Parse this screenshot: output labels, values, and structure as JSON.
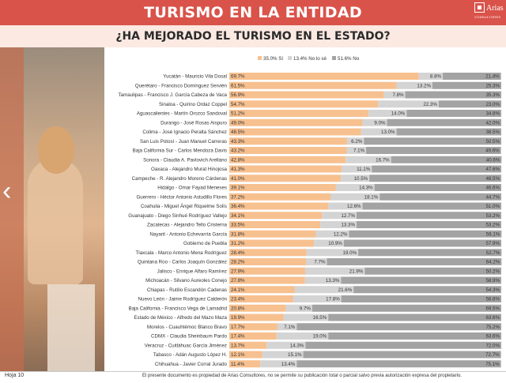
{
  "header": {
    "title": "TURISMO EN LA ENTIDAD",
    "logo_text": "Arias",
    "logo_sub": "CONSULTORES"
  },
  "subtitle": "¿HA MEJORADO EL TURISMO EN EL ESTADO?",
  "footer": {
    "page": "Hoja 10",
    "notice": "El presente documento es propiedad de Arias Consultores, no se permite su publicación total o parcial salvo previa autorización expresa del propietario."
  },
  "colors": {
    "header": "#d9534a",
    "si": "#f7c08f",
    "nolose": "#d4d4d4",
    "no": "#a3a3a3"
  },
  "chart_data": {
    "type": "bar",
    "orientation": "horizontal",
    "stacked": true,
    "xlim": [
      0,
      100
    ],
    "legend_position": "top-right",
    "series": [
      {
        "name": "35.0% Sí",
        "key": "si"
      },
      {
        "name": "13.4% No lo sé",
        "key": "nolose"
      },
      {
        "name": "51.6% No",
        "key": "no"
      }
    ],
    "categories": [
      "Yucatán - Mauricio Vila Dosal",
      "Querétaro - Francisco Domínguez Servién",
      "Tamaulipas - Francisco J. García Cabeza de Vaca",
      "Sinaloa - Quirino Ordaz Coppel",
      "Aguascalientes - Martín Orozco Sandoval",
      "Durango - José Rosas Aispuro",
      "Colima - José Ignacio Peralta Sánchez",
      "San Luis Potosí - Juan Manuel Carreras",
      "Baja California Sur - Carlos Mendoza Davis",
      "Sonora - Claudia A. Pavlovich Arellano",
      "Oaxaca - Alejandro Murat Hinojosa",
      "Campeche - R. Alejandro Moreno Cárdenas",
      "Hidalgo - Omar Fayad Meneses",
      "Guerrero - Héctor Antonio Astudillo Flores",
      "Coahuila - Miguel Ángel Riquelme Solís",
      "Guanajuato - Diego Sinhué Rodríguez Vallejo",
      "Zacatecas - Alejandro Tello Cristerna",
      "Nayarit - Antonio Echevarría García",
      "Gobierno de Puebla",
      "Tlaxcala - Marco Antonio Mena Rodríguez",
      "Quintana Roo - Carlos Joaquín González",
      "Jalisco - Enrique Alfaro Ramírez",
      "Michoacán - Silvano Aureoles Conejo",
      "Chiapas - Rutilio Escandón Cadenas",
      "Nuevo León - Jaime Rodríguez Calderón",
      "Baja California - Francisco Vega de Lamadrid",
      "Estado de México - Alfredo del Mazo Maza",
      "Morelos - Cuauhtémoc Blanco Bravo",
      "CDMX - Claudia Sheinbaum Pardo",
      "Veracruz - Cuitláhuac García Jiménez",
      "Tabasco - Adán Augusto López H.",
      "Chihuahua - Javier Corral Jurado"
    ],
    "si": [
      69.7,
      61.5,
      56.9,
      54.7,
      51.2,
      49.0,
      48.5,
      43.3,
      43.2,
      42.8,
      41.3,
      41.0,
      39.1,
      37.2,
      36.4,
      34.1,
      33.5,
      31.8,
      31.2,
      28.4,
      28.2,
      27.9,
      27.8,
      24.1,
      23.4,
      20.8,
      19.9,
      17.7,
      17.4,
      13.7,
      12.1,
      11.4
    ],
    "nolose": [
      8.8,
      13.2,
      7.8,
      22.3,
      14.0,
      9.0,
      13.0,
      6.2,
      7.1,
      16.7,
      11.1,
      10.5,
      14.3,
      18.1,
      12.6,
      12.7,
      13.3,
      12.2,
      10.9,
      19.0,
      7.7,
      21.9,
      13.3,
      21.6,
      17.8,
      9.7,
      16.5,
      7.1,
      19.0,
      14.3,
      15.1,
      13.4
    ],
    "no": [
      21.4,
      25.3,
      35.3,
      23.0,
      34.8,
      42.0,
      38.5,
      50.5,
      49.6,
      40.6,
      47.6,
      48.5,
      46.6,
      44.7,
      51.0,
      53.2,
      53.2,
      56.1,
      57.9,
      52.7,
      64.2,
      50.2,
      58.9,
      54.3,
      58.8,
      69.5,
      63.6,
      75.2,
      63.6,
      72.0,
      72.7,
      75.1
    ],
    "si_labels": [
      "69.7%",
      "61.5%",
      "56.9%",
      "54.7%",
      "51.2%",
      "49.0%",
      "48.5%",
      "43.3%",
      "43.2%",
      "42.8%",
      "41.3%",
      "41.0%",
      "39.1%",
      "37.2%",
      "36.4%",
      "34.1%",
      "33.5%",
      "31.8%",
      "31.2%",
      "28.4%",
      "28.2%",
      "27.9%",
      "27.8%",
      "24.1%",
      "23.4%",
      "20.8%",
      "19.9%",
      "17.7%",
      "17.4%",
      "13.7%",
      "12.1%",
      "11.4%"
    ],
    "nolose_labels": [
      "8.8%",
      "13.2%",
      "7.8%",
      "22.3%",
      "14.0%",
      "9.0%",
      "13.0%",
      "6.2%",
      "7.1%",
      "16.7%",
      "11.1%",
      "10.5%",
      "14.3%",
      "18.1%",
      "12.6%",
      "12.7%",
      "13.3%",
      "12.2%",
      "10.9%",
      "19.0%",
      "7.7%",
      "21.9%",
      "13.3%",
      "21.6%",
      "17.8%",
      "9.7%",
      "16.5%",
      "7.1%",
      "19.0%",
      "14.3%",
      "15.1%",
      "13.4%"
    ],
    "no_labels": [
      "21.4%",
      "25.3%",
      "35.3%",
      "23.0%",
      "34.8%",
      "42.0%",
      "38.5%",
      "50.5%",
      "49.6%",
      "40.6%",
      "47.6%",
      "48.5%",
      "46.6%",
      "44.7%",
      "51.0%",
      "53.2%",
      "53.2%",
      "56.1%",
      "57.9%",
      "52.7%",
      "64.2%",
      "50.2%",
      "58.9%",
      "54.3%",
      "58.8%",
      "69.5%",
      "63.6%",
      "75.2%",
      "63.6%",
      "72.0%",
      "72.7%",
      "75.1%"
    ]
  }
}
